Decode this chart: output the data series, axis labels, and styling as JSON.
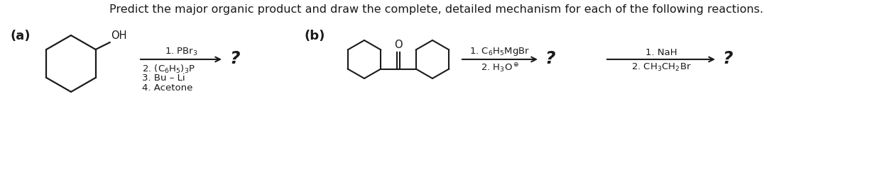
{
  "title": "Predict the major organic product and draw the complete, detailed mechanism for each of the following reactions.",
  "title_fontsize": 11.5,
  "bg_color": "#ffffff",
  "label_a": "(a)",
  "label_b": "(b)",
  "label_fontsize": 13,
  "reagents_a_above": "1. PBr$_3$",
  "reagents_a_below": [
    "2. (C$_6$H$_5$)$_3$P",
    "3. Bu – Li",
    "4. Acetone"
  ],
  "reagents_b1_above": "1. C$_6$H$_5$MgBr",
  "reagents_b1_below": "2. H$_3$O$^\\oplus$",
  "reagents_b2_above": "1. NaH",
  "reagents_b2_below": "2. CH$_3$CH$_2$Br",
  "question_mark": "?",
  "arrow_color": "#1a1a1a",
  "text_color": "#1a1a1a",
  "mol_color": "#1a1a1a",
  "reagent_fontsize": 9.5,
  "question_fontsize": 18,
  "oh_fontsize": 10.5
}
